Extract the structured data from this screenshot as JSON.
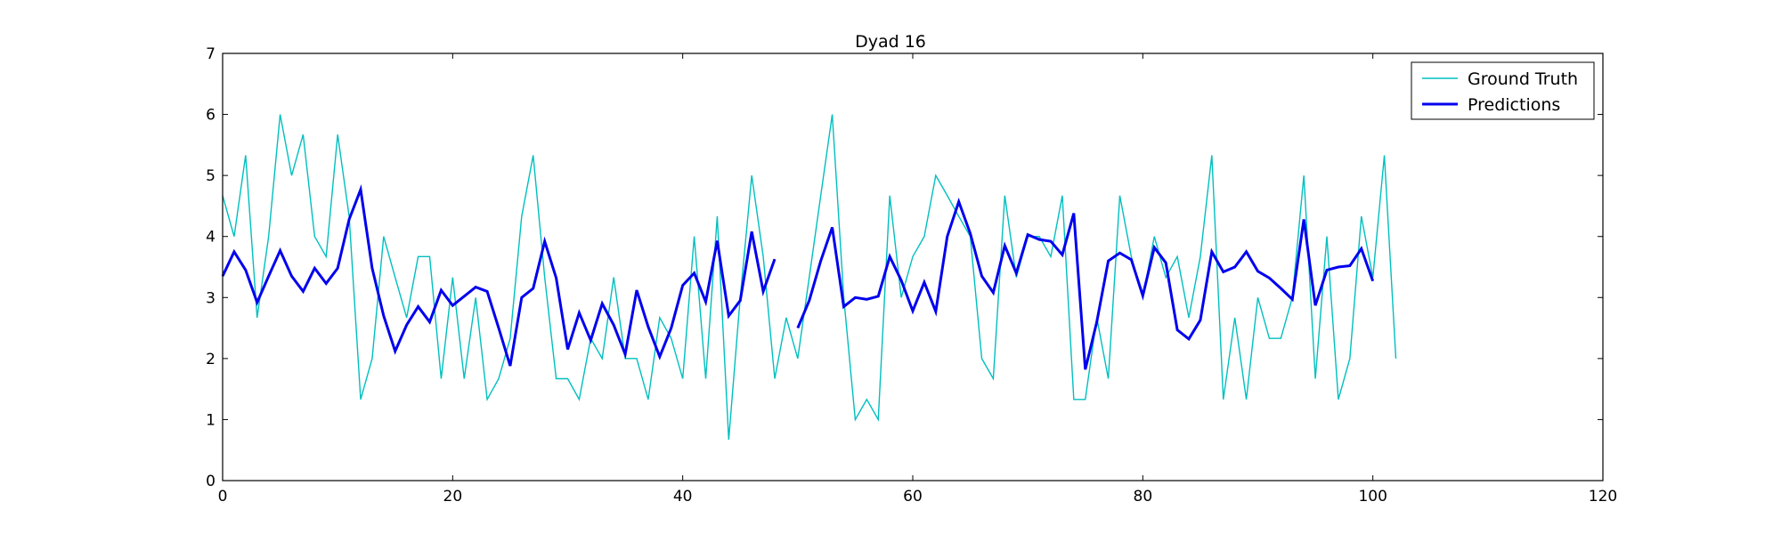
{
  "chart_data": {
    "type": "line",
    "title": "Dyad 16",
    "xlabel": "",
    "ylabel": "",
    "xlim": [
      0,
      120
    ],
    "ylim": [
      0,
      7
    ],
    "xticks": [
      0,
      20,
      40,
      60,
      80,
      100,
      120
    ],
    "yticks": [
      0,
      1,
      2,
      3,
      4,
      5,
      6,
      7
    ],
    "grid": false,
    "legend_position": "top-right",
    "series": [
      {
        "name": "Ground Truth",
        "color": "#00bfbf",
        "style": "thin",
        "points": [
          [
            0,
            4.67
          ],
          [
            1,
            4.0
          ],
          [
            2,
            5.33
          ],
          [
            3,
            2.67
          ],
          [
            4,
            4.0
          ],
          [
            5,
            6.0
          ],
          [
            6,
            5.0
          ],
          [
            7,
            5.67
          ],
          [
            8,
            4.0
          ],
          [
            9,
            3.67
          ],
          [
            10,
            5.67
          ],
          [
            11,
            4.33
          ],
          [
            12,
            1.33
          ],
          [
            13,
            2.0
          ],
          [
            14,
            4.0
          ],
          [
            15,
            3.33
          ],
          [
            16,
            2.67
          ],
          [
            17,
            3.67
          ],
          [
            18,
            3.67
          ],
          [
            19,
            1.67
          ],
          [
            20,
            3.33
          ],
          [
            21,
            1.67
          ],
          [
            22,
            3.0
          ],
          [
            23,
            1.33
          ],
          [
            24,
            1.67
          ],
          [
            25,
            2.33
          ],
          [
            26,
            4.33
          ],
          [
            27,
            5.33
          ],
          [
            28,
            3.33
          ],
          [
            29,
            1.67
          ],
          [
            30,
            1.67
          ],
          [
            31,
            1.33
          ],
          [
            32,
            2.33
          ],
          [
            33,
            2.0
          ],
          [
            34,
            3.33
          ],
          [
            35,
            2.0
          ],
          [
            36,
            2.0
          ],
          [
            37,
            1.33
          ],
          [
            38,
            2.67
          ],
          [
            39,
            2.33
          ],
          [
            40,
            1.67
          ],
          [
            41,
            4.0
          ],
          [
            42,
            1.67
          ],
          [
            43,
            4.33
          ],
          [
            44,
            0.67
          ],
          [
            45,
            3.0
          ],
          [
            46,
            5.0
          ],
          [
            47,
            3.67
          ],
          [
            48,
            1.67
          ],
          [
            49,
            2.67
          ],
          [
            50,
            2.0
          ],
          [
            51,
            3.33
          ],
          [
            52,
            4.67
          ],
          [
            53,
            6.0
          ],
          [
            54,
            3.0
          ],
          [
            55,
            1.0
          ],
          [
            56,
            1.33
          ],
          [
            57,
            1.0
          ],
          [
            58,
            4.67
          ],
          [
            59,
            3.0
          ],
          [
            60,
            3.67
          ],
          [
            61,
            4.0
          ],
          [
            62,
            5.0
          ],
          [
            63,
            4.67
          ],
          [
            64,
            4.33
          ],
          [
            65,
            4.0
          ],
          [
            66,
            2.0
          ],
          [
            67,
            1.67
          ],
          [
            68,
            4.67
          ],
          [
            69,
            3.33
          ],
          [
            70,
            4.0
          ],
          [
            71,
            4.0
          ],
          [
            72,
            3.67
          ],
          [
            73,
            4.67
          ],
          [
            74,
            1.33
          ],
          [
            75,
            1.33
          ],
          [
            76,
            2.67
          ],
          [
            77,
            1.67
          ],
          [
            78,
            4.67
          ],
          [
            79,
            3.67
          ],
          [
            80,
            3.0
          ],
          [
            81,
            4.0
          ],
          [
            82,
            3.33
          ],
          [
            83,
            3.67
          ],
          [
            84,
            2.67
          ],
          [
            85,
            3.67
          ],
          [
            86,
            5.33
          ],
          [
            87,
            1.33
          ],
          [
            88,
            2.67
          ],
          [
            89,
            1.33
          ],
          [
            90,
            3.0
          ],
          [
            91,
            2.33
          ],
          [
            92,
            2.33
          ],
          [
            93,
            3.0
          ],
          [
            94,
            5.0
          ],
          [
            95,
            1.67
          ],
          [
            96,
            4.0
          ],
          [
            97,
            1.33
          ],
          [
            98,
            2.0
          ],
          [
            99,
            4.33
          ],
          [
            100,
            3.33
          ],
          [
            101,
            5.33
          ],
          [
            102,
            2.0
          ]
        ]
      },
      {
        "name": "Predictions",
        "color": "#0000ee",
        "style": "thick",
        "segments": [
          [
            [
              0,
              3.35
            ],
            [
              1,
              3.75
            ],
            [
              2,
              3.45
            ],
            [
              3,
              2.92
            ],
            [
              4,
              3.35
            ],
            [
              5,
              3.77
            ],
            [
              6,
              3.35
            ],
            [
              7,
              3.1
            ],
            [
              8,
              3.48
            ],
            [
              9,
              3.23
            ],
            [
              10,
              3.48
            ],
            [
              11,
              4.28
            ],
            [
              12,
              4.77
            ],
            [
              13,
              3.48
            ],
            [
              14,
              2.7
            ],
            [
              15,
              2.12
            ],
            [
              16,
              2.55
            ],
            [
              17,
              2.85
            ],
            [
              18,
              2.6
            ],
            [
              19,
              3.12
            ],
            [
              20,
              2.87
            ],
            [
              21,
              3.02
            ],
            [
              22,
              3.17
            ],
            [
              23,
              3.1
            ],
            [
              24,
              2.5
            ],
            [
              25,
              1.88
            ],
            [
              26,
              3.0
            ],
            [
              27,
              3.15
            ],
            [
              28,
              3.92
            ],
            [
              29,
              3.32
            ],
            [
              30,
              2.15
            ],
            [
              31,
              2.75
            ],
            [
              32,
              2.3
            ],
            [
              33,
              2.9
            ],
            [
              34,
              2.55
            ],
            [
              35,
              2.07
            ],
            [
              36,
              3.12
            ],
            [
              37,
              2.52
            ],
            [
              38,
              2.03
            ],
            [
              39,
              2.5
            ],
            [
              40,
              3.2
            ],
            [
              41,
              3.4
            ],
            [
              42,
              2.93
            ],
            [
              43,
              3.93
            ],
            [
              44,
              2.7
            ],
            [
              45,
              2.95
            ],
            [
              46,
              4.08
            ],
            [
              47,
              3.1
            ],
            [
              48,
              3.63
            ]
          ],
          [
            [
              50,
              2.5
            ],
            [
              51,
              2.95
            ],
            [
              52,
              3.6
            ],
            [
              53,
              4.15
            ],
            [
              54,
              2.85
            ],
            [
              55,
              3.0
            ],
            [
              56,
              2.97
            ],
            [
              57,
              3.02
            ],
            [
              58,
              3.67
            ],
            [
              59,
              3.28
            ],
            [
              60,
              2.78
            ],
            [
              61,
              3.25
            ],
            [
              62,
              2.77
            ],
            [
              63,
              4.0
            ],
            [
              64,
              4.57
            ],
            [
              65,
              4.05
            ],
            [
              66,
              3.35
            ],
            [
              67,
              3.08
            ],
            [
              68,
              3.85
            ],
            [
              69,
              3.4
            ],
            [
              70,
              4.03
            ],
            [
              71,
              3.95
            ],
            [
              72,
              3.92
            ],
            [
              73,
              3.7
            ],
            [
              74,
              4.38
            ],
            [
              75,
              1.82
            ],
            [
              76,
              2.6
            ],
            [
              77,
              3.6
            ],
            [
              78,
              3.73
            ],
            [
              79,
              3.62
            ],
            [
              80,
              3.03
            ],
            [
              81,
              3.82
            ],
            [
              82,
              3.57
            ],
            [
              83,
              2.47
            ],
            [
              84,
              2.32
            ],
            [
              85,
              2.63
            ],
            [
              86,
              3.75
            ],
            [
              87,
              3.42
            ],
            [
              88,
              3.5
            ],
            [
              89,
              3.75
            ],
            [
              90,
              3.43
            ],
            [
              91,
              3.32
            ],
            [
              92,
              3.15
            ],
            [
              93,
              2.97
            ],
            [
              94,
              4.28
            ],
            [
              95,
              2.87
            ],
            [
              96,
              3.45
            ],
            [
              97,
              3.5
            ],
            [
              98,
              3.52
            ],
            [
              99,
              3.8
            ],
            [
              100,
              3.27
            ]
          ]
        ]
      }
    ]
  }
}
